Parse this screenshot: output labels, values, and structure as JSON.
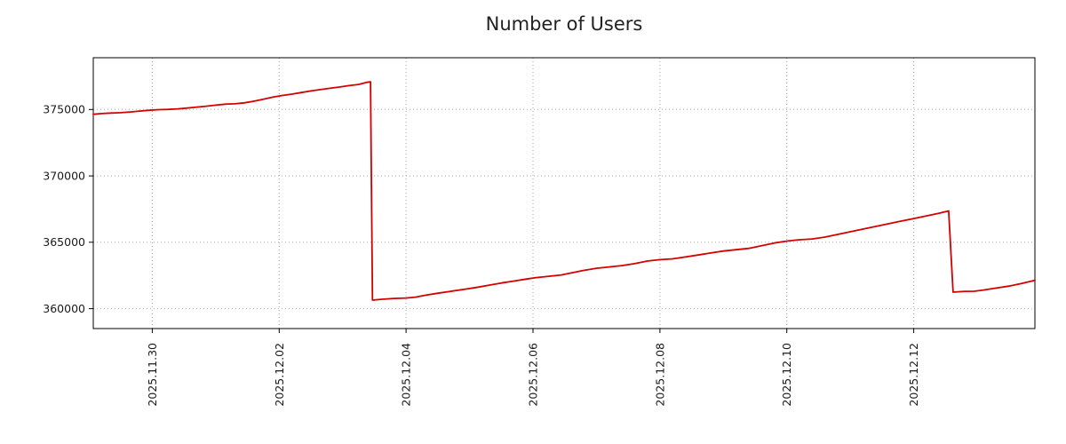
{
  "title": "Number of Users",
  "chart_data": {
    "type": "line",
    "title": "Number of Users",
    "x_unit": "days_since_2025.11.29_00:00",
    "x_axis": {
      "lim": [
        0.07,
        14.91
      ],
      "ticks": [
        {
          "pos": 1,
          "label": "2025.11.30"
        },
        {
          "pos": 3,
          "label": "2025.12.02"
        },
        {
          "pos": 5,
          "label": "2025.12.04"
        },
        {
          "pos": 7,
          "label": "2025.12.06"
        },
        {
          "pos": 9,
          "label": "2025.12.08"
        },
        {
          "pos": 11,
          "label": "2025.12.10"
        },
        {
          "pos": 13,
          "label": "2025.12.12"
        }
      ]
    },
    "y_axis": {
      "lim": [
        358500,
        378900
      ],
      "ticks": [
        {
          "pos": 360000,
          "label": "360000"
        },
        {
          "pos": 365000,
          "label": "365000"
        },
        {
          "pos": 370000,
          "label": "370000"
        },
        {
          "pos": 375000,
          "label": "375000"
        }
      ]
    },
    "grid": {
      "show": true,
      "style": "dotted",
      "color": "#aaaaaa"
    },
    "border_color": "#000000",
    "tick_color": "#000000",
    "series": [
      {
        "name": "users",
        "color": "#d40000",
        "line_width": 1.8,
        "points": [
          [
            0.07,
            374640
          ],
          [
            0.2,
            374690
          ],
          [
            0.35,
            374730
          ],
          [
            0.5,
            374760
          ],
          [
            0.65,
            374810
          ],
          [
            0.8,
            374880
          ],
          [
            0.95,
            374940
          ],
          [
            1.1,
            374990
          ],
          [
            1.25,
            375010
          ],
          [
            1.4,
            375050
          ],
          [
            1.55,
            375110
          ],
          [
            1.7,
            375180
          ],
          [
            1.85,
            375250
          ],
          [
            2.0,
            375330
          ],
          [
            2.15,
            375400
          ],
          [
            2.3,
            375430
          ],
          [
            2.45,
            375500
          ],
          [
            2.6,
            375620
          ],
          [
            2.75,
            375770
          ],
          [
            2.9,
            375930
          ],
          [
            3.05,
            376060
          ],
          [
            3.2,
            376160
          ],
          [
            3.35,
            376280
          ],
          [
            3.5,
            376400
          ],
          [
            3.65,
            376500
          ],
          [
            3.8,
            376600
          ],
          [
            3.95,
            376690
          ],
          [
            4.1,
            376800
          ],
          [
            4.25,
            376890
          ],
          [
            4.38,
            377050
          ],
          [
            4.44,
            377090
          ],
          [
            4.47,
            360640
          ],
          [
            4.6,
            360700
          ],
          [
            4.8,
            360770
          ],
          [
            5.0,
            360800
          ],
          [
            5.15,
            360870
          ],
          [
            5.3,
            361010
          ],
          [
            5.5,
            361160
          ],
          [
            5.7,
            361300
          ],
          [
            5.9,
            361440
          ],
          [
            6.1,
            361590
          ],
          [
            6.3,
            361760
          ],
          [
            6.5,
            361930
          ],
          [
            6.7,
            362080
          ],
          [
            6.9,
            362230
          ],
          [
            7.05,
            362340
          ],
          [
            7.25,
            362440
          ],
          [
            7.45,
            362540
          ],
          [
            7.6,
            362690
          ],
          [
            7.8,
            362880
          ],
          [
            8.0,
            363040
          ],
          [
            8.2,
            363140
          ],
          [
            8.4,
            363240
          ],
          [
            8.6,
            363390
          ],
          [
            8.8,
            363580
          ],
          [
            9.0,
            363690
          ],
          [
            9.2,
            363750
          ],
          [
            9.4,
            363890
          ],
          [
            9.6,
            364040
          ],
          [
            9.8,
            364190
          ],
          [
            10.0,
            364340
          ],
          [
            10.2,
            364440
          ],
          [
            10.4,
            364540
          ],
          [
            10.6,
            364740
          ],
          [
            10.8,
            364940
          ],
          [
            11.0,
            365090
          ],
          [
            11.2,
            365190
          ],
          [
            11.4,
            365250
          ],
          [
            11.6,
            365390
          ],
          [
            11.8,
            365590
          ],
          [
            12.0,
            365790
          ],
          [
            12.2,
            365990
          ],
          [
            12.4,
            366190
          ],
          [
            12.6,
            366390
          ],
          [
            12.8,
            366590
          ],
          [
            13.0,
            366790
          ],
          [
            13.2,
            366990
          ],
          [
            13.4,
            367190
          ],
          [
            13.55,
            367360
          ],
          [
            13.62,
            361240
          ],
          [
            13.8,
            361300
          ],
          [
            13.95,
            361310
          ],
          [
            14.1,
            361400
          ],
          [
            14.3,
            361550
          ],
          [
            14.5,
            361700
          ],
          [
            14.7,
            361890
          ],
          [
            14.91,
            362140
          ]
        ]
      }
    ]
  }
}
